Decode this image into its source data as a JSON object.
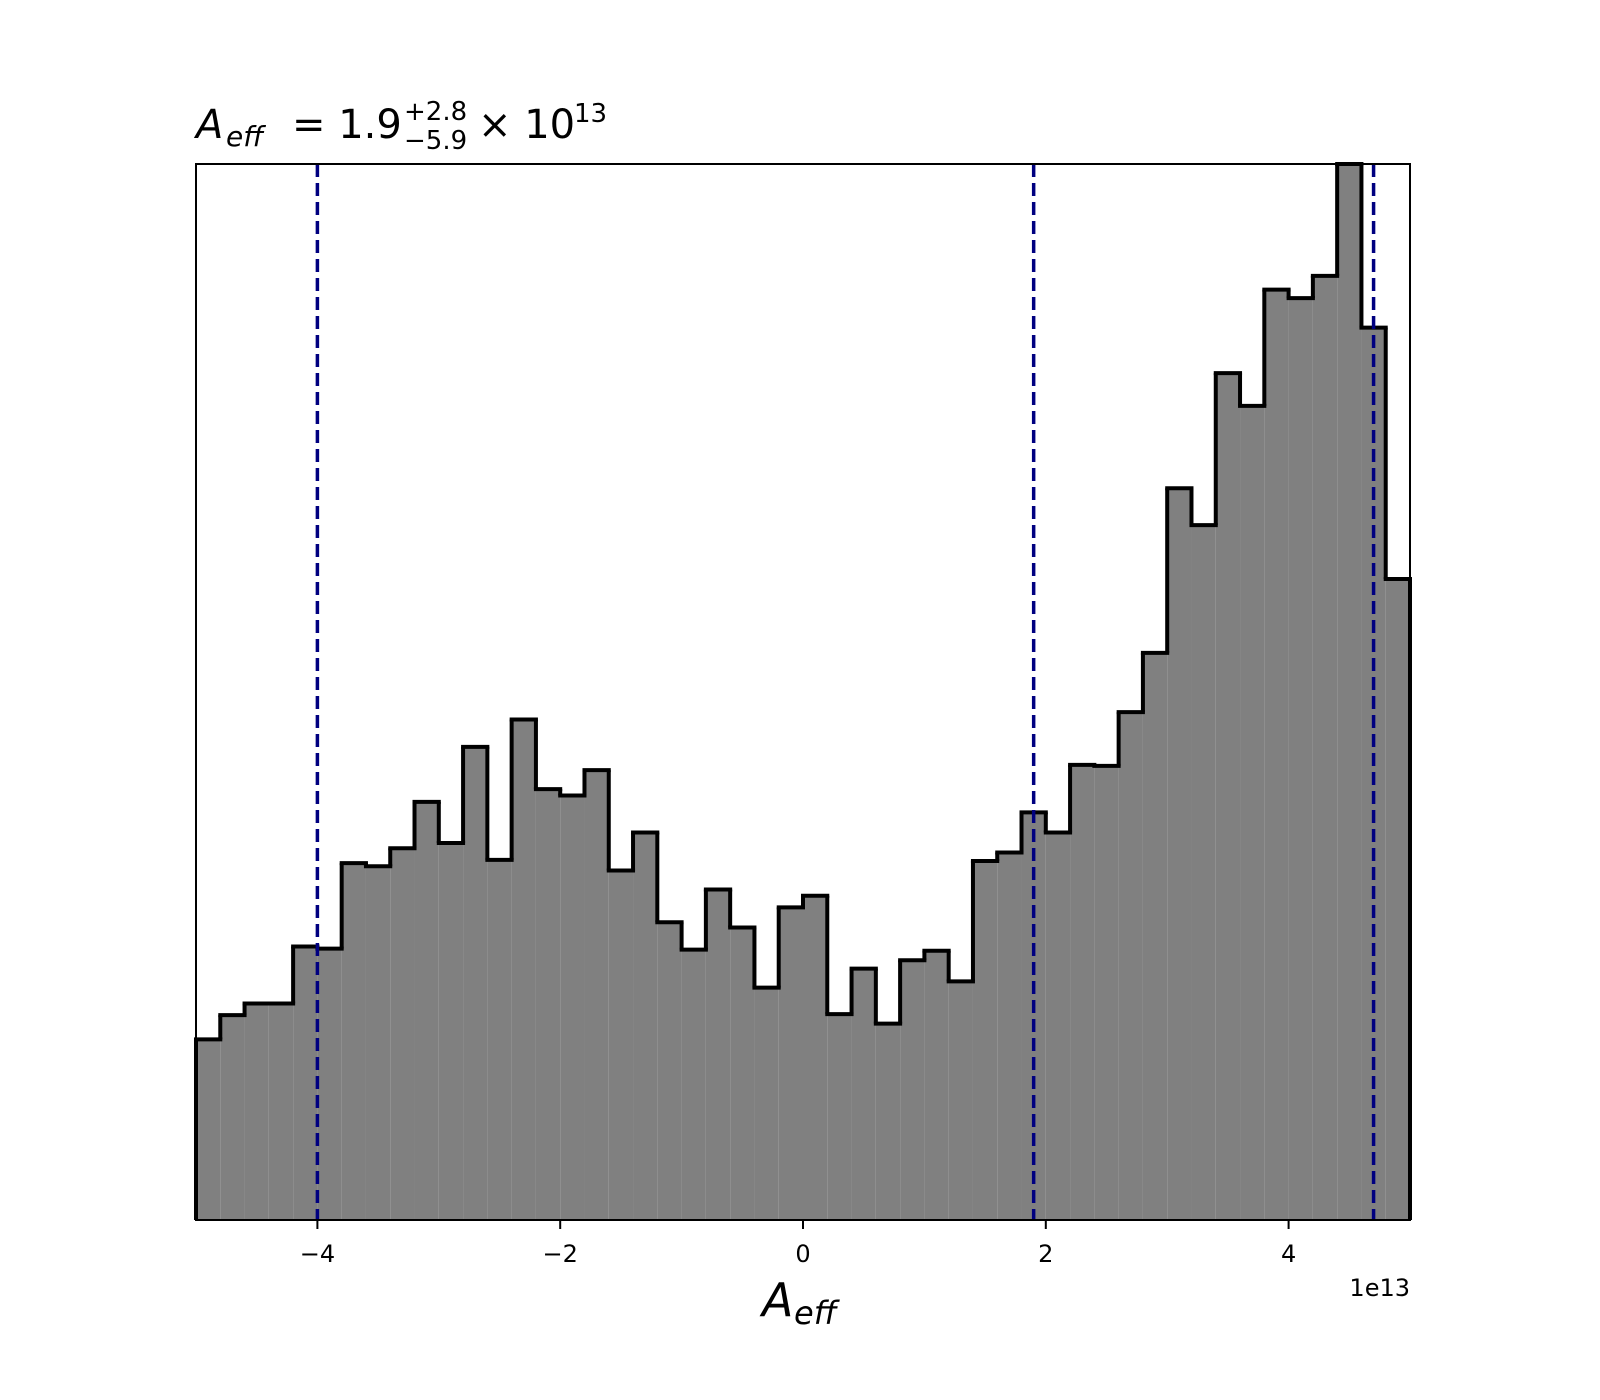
{
  "chart_data": {
    "type": "histogram",
    "title": {
      "symbol": "A",
      "subscript": "eff",
      "median": "= 1.9",
      "plus": "+2.8",
      "minus": "−5.9",
      "times": "× 10",
      "exponent": "13"
    },
    "x_label": {
      "symbol": "A",
      "subscript": "eff"
    },
    "x_offset_label": "1e13",
    "bins": [
      -5,
      -4.8,
      -4.6,
      -4.4,
      -4.2,
      -4,
      -3.8,
      -3.6,
      -3.4,
      -3.2,
      -3,
      -2.8,
      -2.6,
      -2.4,
      -2.2,
      -2,
      -1.8,
      -1.6,
      -1.4,
      -1.2,
      -1,
      -0.8,
      -0.6,
      -0.4,
      -0.2,
      0,
      0.2,
      0.4,
      0.6,
      0.8,
      1,
      1.2,
      1.4,
      1.6,
      1.8,
      2,
      2.2,
      2.4,
      2.6,
      2.8,
      3,
      3.2,
      3.4,
      3.6,
      3.8,
      4,
      4.2,
      4.4,
      4.6,
      4.8,
      5
    ],
    "values": [
      17.1,
      19.4,
      20.5,
      20.5,
      25.9,
      25.7,
      33.8,
      33.5,
      35.2,
      39.6,
      35.7,
      44.8,
      34.1,
      47.4,
      40.8,
      40.2,
      42.6,
      33.1,
      36.7,
      28.2,
      25.6,
      31.3,
      27.7,
      22.0,
      29.6,
      30.7,
      19.5,
      23.8,
      18.6,
      24.6,
      25.5,
      22.6,
      34.0,
      34.8,
      38.6,
      36.7,
      43.1,
      43.0,
      48.1,
      53.7,
      69.3,
      65.8,
      80.2,
      77.1,
      88.1,
      87.3,
      89.4,
      100,
      84.5,
      60.7
    ],
    "color": "#808080",
    "edge_color": "#000000",
    "quantile_lines": [
      -4.0,
      1.9,
      4.7
    ],
    "quantile_color": "#000080",
    "xlim": [
      -5,
      5
    ],
    "ylim": [
      0,
      100
    ],
    "xticks": [
      {
        "value": -4,
        "label": "−4"
      },
      {
        "value": -2,
        "label": "−2"
      },
      0,
      2,
      4
    ]
  }
}
